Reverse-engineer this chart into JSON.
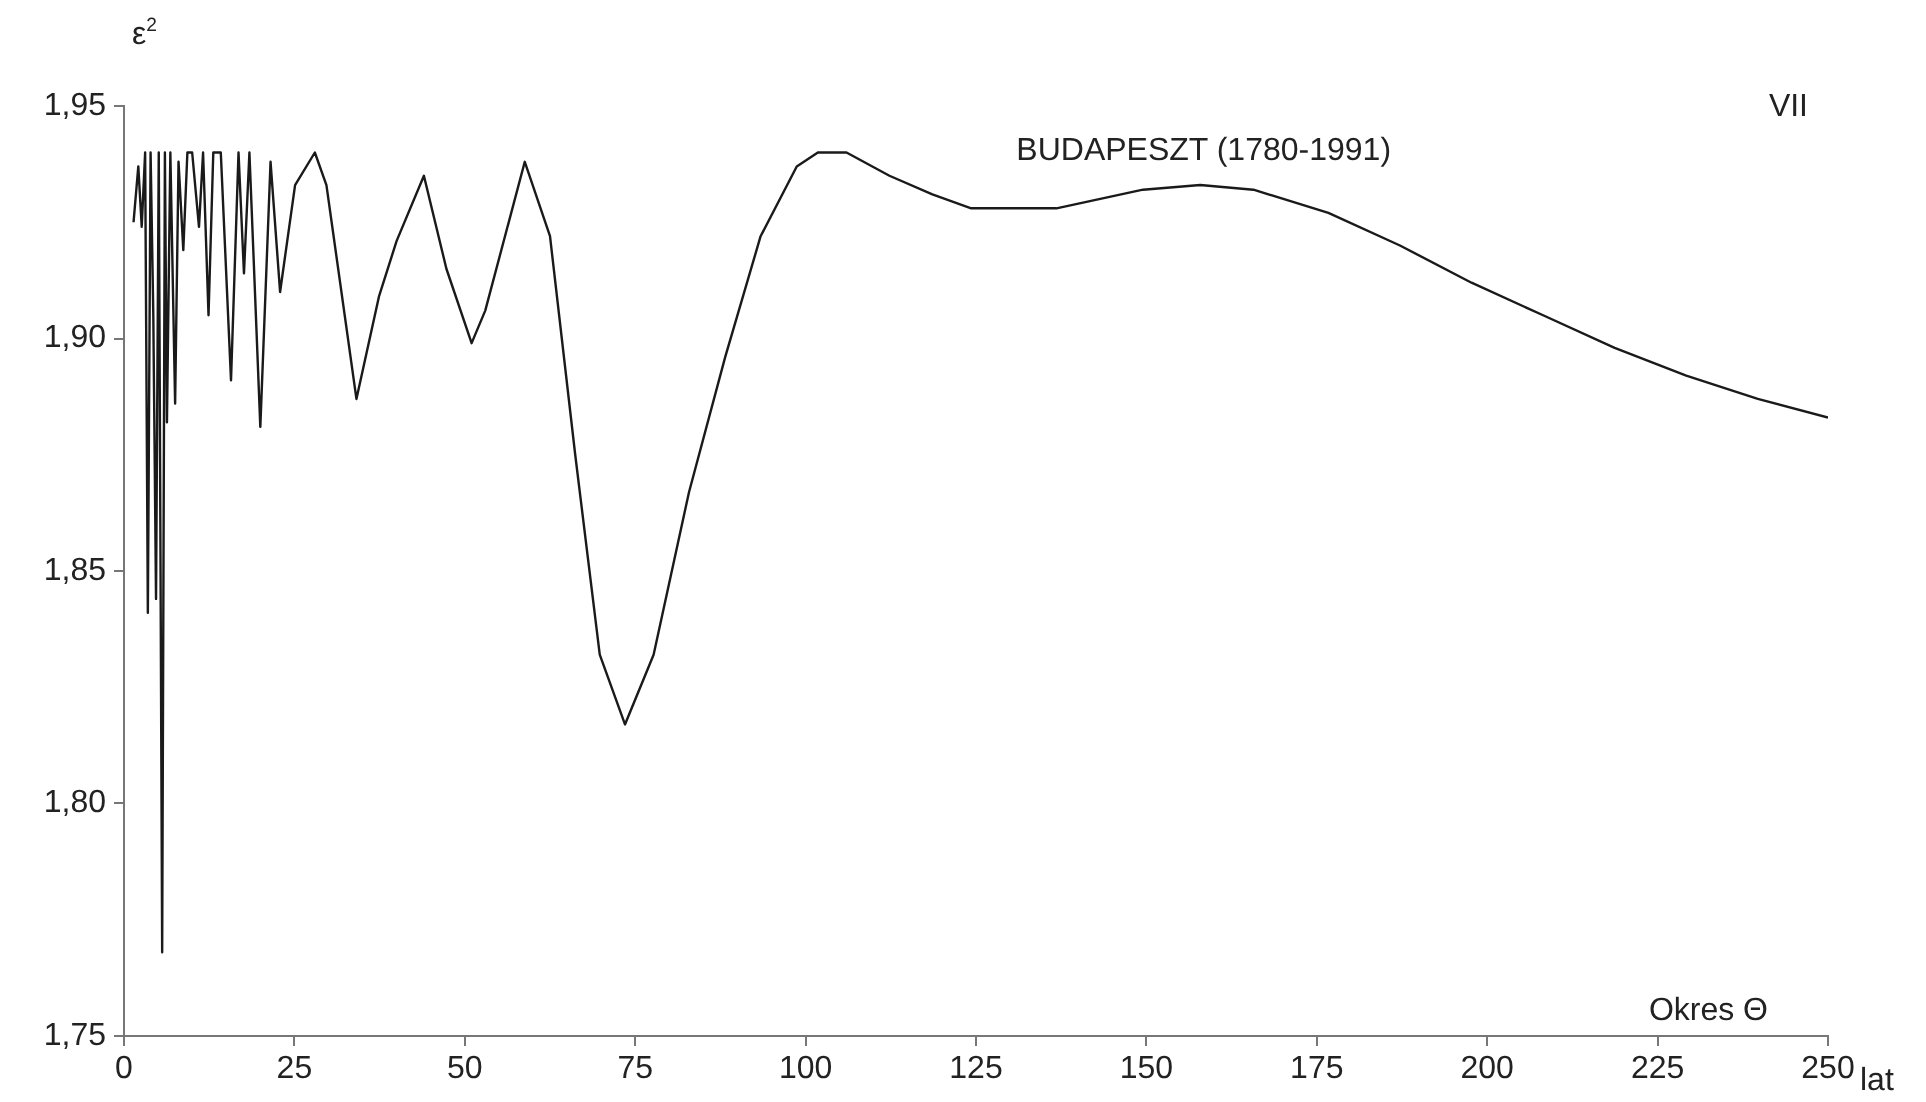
{
  "chart_data": {
    "type": "line",
    "title": "BUDAPESZT (1780-1991)",
    "xlabel": "Okres Θ",
    "ylabel": "ε$^{2}$",
    "annotations": [
      "VII",
      "lat"
    ],
    "x": [
      1.4,
      2.1,
      2.6,
      3.1,
      3.5,
      3.9,
      4.3,
      4.7,
      5.1,
      5.6,
      6.0,
      6.3,
      6.8,
      7.5,
      8.0,
      8.7,
      9.3,
      10.0,
      11.0,
      11.6,
      12.4,
      13.1,
      14.2,
      15.7,
      16.8,
      17.6,
      18.4,
      20.0,
      21.5,
      22.9,
      25.1,
      28.0,
      29.7,
      34.1,
      37.4,
      40.0,
      44.0,
      47.3,
      51.0,
      53.0,
      58.8,
      62.5,
      66.2,
      69.8,
      73.5,
      77.7,
      82.9,
      88.2,
      93.4,
      98.7,
      101.8,
      106.0,
      112.3,
      118.6,
      124.3,
      136.8,
      149.5,
      157.9,
      165.7,
      176.7,
      187.2,
      197.7,
      208.2,
      218.7,
      229.2,
      239.7,
      250.0
    ],
    "values": [
      1.925,
      1.937,
      1.924,
      1.94,
      1.841,
      1.94,
      1.905,
      1.844,
      1.94,
      1.768,
      1.94,
      1.882,
      1.94,
      1.886,
      1.938,
      1.919,
      1.94,
      1.94,
      1.924,
      1.94,
      1.905,
      1.94,
      1.94,
      1.891,
      1.94,
      1.914,
      1.94,
      1.881,
      1.938,
      1.91,
      1.933,
      1.94,
      1.933,
      1.887,
      1.909,
      1.921,
      1.935,
      1.915,
      1.899,
      1.906,
      1.938,
      1.922,
      1.875,
      1.832,
      1.817,
      1.832,
      1.867,
      1.896,
      1.922,
      1.937,
      1.94,
      1.94,
      1.935,
      1.931,
      1.928,
      1.928,
      1.932,
      1.933,
      1.932,
      1.927,
      1.92,
      1.912,
      1.905,
      1.898,
      1.892,
      1.887,
      1.883
    ],
    "color": "#1a1a1a",
    "line_style": "solid",
    "marker": "none",
    "xlim": [
      0,
      250
    ],
    "xticks": [
      0,
      25,
      50,
      75,
      100,
      125,
      150,
      175,
      200,
      225,
      250
    ],
    "ylim": [
      1.75,
      1.95
    ],
    "yticks": [
      {
        "value": 1.75,
        "label": "1,75"
      },
      {
        "value": 1.8,
        "label": "1,80"
      },
      {
        "value": 1.85,
        "label": "1,85"
      },
      {
        "value": 1.9,
        "label": "1,90"
      },
      {
        "value": 1.95,
        "label": "1,95"
      }
    ],
    "grid": false,
    "legend": false
  }
}
